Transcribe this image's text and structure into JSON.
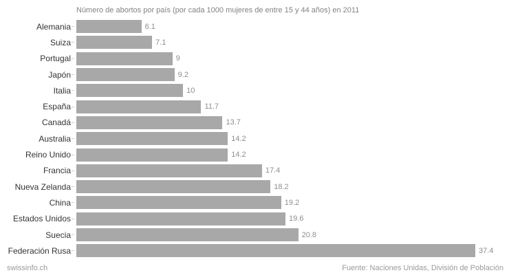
{
  "title": "Número de abortos por país (por cada 1000 mujeres de entre 15 y 44 años) en 2011",
  "footer": {
    "left": "swissinfo.ch",
    "right": "Fuente: Naciones Unidas, División de Población"
  },
  "colors": {
    "background": "#ffffff",
    "bar": "#a8a8a8",
    "title_text": "#828282",
    "category_text": "#333333",
    "value_text": "#8e8e8e",
    "footer_text": "#9a9a9a",
    "tick": "#cccccc"
  },
  "chart_data": {
    "type": "bar",
    "orientation": "horizontal",
    "title": "Número de abortos por país (por cada 1000 mujeres de entre 15 y 44 años) en 2011",
    "categories": [
      "Alemania",
      "Suiza",
      "Portugal",
      "Japón",
      "Italia",
      "España",
      "Canadá",
      "Australia",
      "Reino Unido",
      "Francia",
      "Nueva Zelanda",
      "China",
      "Estados Unidos",
      "Suecia",
      "Federación Rusa"
    ],
    "values": [
      6.1,
      7.1,
      9,
      9.2,
      10,
      11.7,
      13.7,
      14.2,
      14.2,
      17.4,
      18.2,
      19.2,
      19.6,
      20.8,
      37.4
    ],
    "value_labels": [
      "6.1",
      "7.1",
      "9",
      "9.2",
      "10",
      "11.7",
      "13.7",
      "14.2",
      "14.2",
      "17.4",
      "18.2",
      "19.2",
      "19.6",
      "20.8",
      "37.4"
    ],
    "xlabel": "",
    "ylabel": "",
    "xlim": [
      0,
      37.4
    ],
    "grid": false,
    "legend": false,
    "data_labels": true,
    "source": "Fuente: Naciones Unidas, División de Población"
  }
}
